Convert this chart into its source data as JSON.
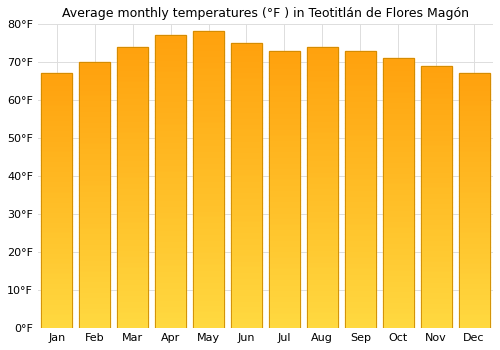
{
  "title": "Average monthly temperatures (°F ) in Teotitlán de Flores Magón",
  "months": [
    "Jan",
    "Feb",
    "Mar",
    "Apr",
    "May",
    "Jun",
    "Jul",
    "Aug",
    "Sep",
    "Oct",
    "Nov",
    "Dec"
  ],
  "values": [
    67,
    70,
    74,
    77,
    78,
    75,
    73,
    74,
    73,
    71,
    69,
    67
  ],
  "bar_color_main": "#FFA820",
  "bar_color_light": "#FFD060",
  "bar_edge_color": "#CC8800",
  "background_color": "#ffffff",
  "grid_color": "#dddddd",
  "ylim": [
    0,
    80
  ],
  "ytick_step": 10,
  "title_fontsize": 9,
  "tick_fontsize": 8,
  "bar_width": 0.82
}
